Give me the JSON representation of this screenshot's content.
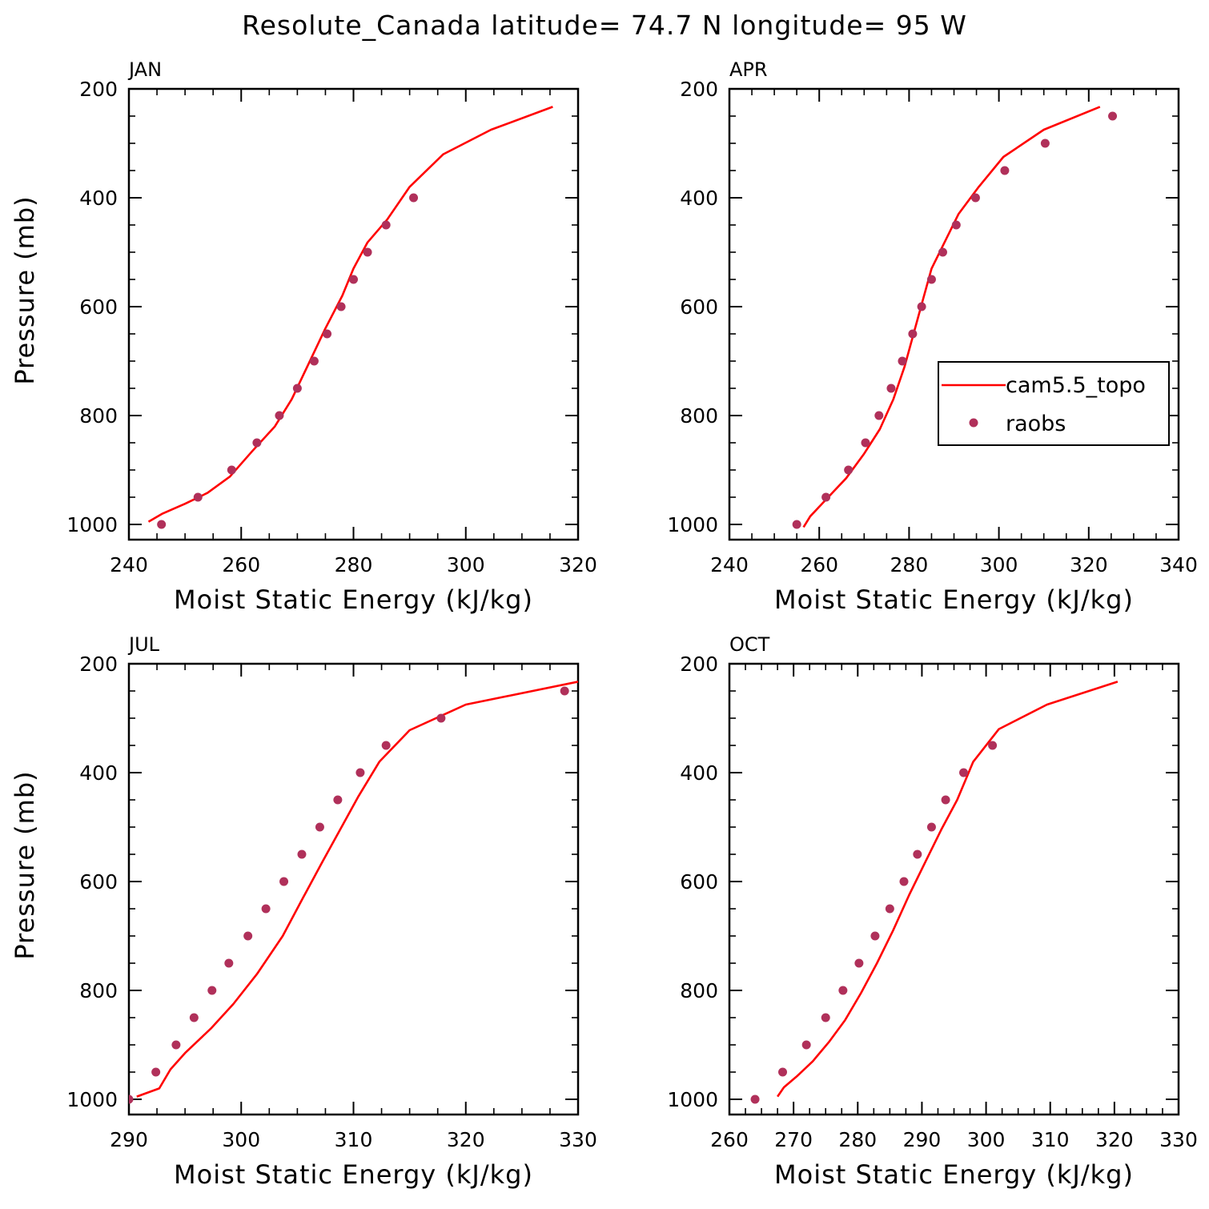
{
  "title": "Resolute_Canada  latitude= 74.7 N longitude= 95 W",
  "colors": {
    "model_line": "#ff0000",
    "obs_marker": "#b0305a"
  },
  "legend": {
    "model_label": "cam5.5_topo",
    "obs_label": "raobs"
  },
  "chart_data": [
    {
      "type": "line",
      "panel_label": "JAN",
      "xlabel": "Moist Static Energy (kJ/kg)",
      "ylabel": "Pressure (mb)",
      "xlim": [
        240,
        320
      ],
      "ylim": [
        200,
        1000
      ],
      "xticks": [
        240,
        260,
        280,
        300,
        320
      ],
      "yticks": [
        200,
        400,
        600,
        800,
        1000
      ],
      "series": [
        {
          "name": "cam5.5_topo",
          "kind": "line",
          "x": [
            243.5,
            246,
            250,
            254,
            258,
            262,
            266,
            269,
            272,
            275,
            278,
            280,
            282.5,
            286,
            290,
            296,
            304.5,
            315.5
          ],
          "p": [
            995,
            980,
            962,
            942,
            912,
            865,
            820,
            770,
            705,
            640,
            580,
            530,
            482,
            440,
            380,
            320,
            275,
            233
          ]
        },
        {
          "name": "raobs",
          "kind": "scatter",
          "x": [
            245.8,
            252.3,
            258.3,
            262.8,
            266.8,
            270,
            273,
            275.3,
            277.8,
            280,
            282.5,
            285.8,
            290.7
          ],
          "p": [
            1000,
            950,
            900,
            850,
            800,
            750,
            700,
            650,
            600,
            550,
            500,
            450,
            400
          ]
        }
      ]
    },
    {
      "type": "line",
      "panel_label": "APR",
      "xlabel": "Moist Static Energy (kJ/kg)",
      "ylabel": "",
      "xlim": [
        240,
        340
      ],
      "ylim": [
        200,
        1000
      ],
      "xticks": [
        240,
        260,
        280,
        300,
        320,
        340
      ],
      "yticks": [
        200,
        400,
        600,
        800,
        1000
      ],
      "legend_position": "middle-right",
      "series": [
        {
          "name": "cam5.5_topo",
          "kind": "line",
          "x": [
            256.5,
            258,
            262,
            266,
            270,
            273.5,
            276.5,
            279,
            281,
            283,
            285,
            288,
            291,
            295.5,
            301,
            310,
            322.5
          ],
          "p": [
            1005,
            985,
            950,
            915,
            870,
            825,
            770,
            710,
            650,
            590,
            530,
            480,
            430,
            380,
            325,
            275,
            233
          ]
        },
        {
          "name": "raobs",
          "kind": "scatter",
          "x": [
            255,
            261.5,
            266.5,
            270.3,
            273.3,
            276,
            278.5,
            280.8,
            282.8,
            285,
            287.5,
            290.5,
            294.8,
            301.3,
            310.3,
            325.3
          ],
          "p": [
            1000,
            950,
            900,
            850,
            800,
            750,
            700,
            650,
            600,
            550,
            500,
            450,
            400,
            350,
            300,
            250
          ]
        }
      ]
    },
    {
      "type": "line",
      "panel_label": "JUL",
      "xlabel": "Moist Static Energy (kJ/kg)",
      "ylabel": "Pressure (mb)",
      "xlim": [
        290,
        330
      ],
      "ylim": [
        200,
        1000
      ],
      "xticks": [
        290,
        300,
        310,
        320,
        330
      ],
      "yticks": [
        200,
        400,
        600,
        800,
        1000
      ],
      "series": [
        {
          "name": "cam5.5_topo",
          "kind": "line",
          "x": [
            290.7,
            292.7,
            293.7,
            295,
            297.3,
            299.3,
            301.4,
            303.7,
            305.5,
            307.2,
            308.8,
            310.4,
            312.3,
            315,
            320,
            330
          ],
          "p": [
            995,
            980,
            945,
            915,
            870,
            825,
            770,
            700,
            630,
            565,
            505,
            445,
            380,
            322,
            275,
            233
          ]
        },
        {
          "name": "raobs",
          "kind": "scatter",
          "x": [
            290,
            292.4,
            294.2,
            295.8,
            297.4,
            298.9,
            300.6,
            302.2,
            303.8,
            305.4,
            307,
            308.6,
            310.6,
            312.9,
            317.8,
            328.8
          ],
          "p": [
            1000,
            950,
            900,
            850,
            800,
            750,
            700,
            650,
            600,
            550,
            500,
            450,
            400,
            350,
            300,
            250
          ]
        }
      ]
    },
    {
      "type": "line",
      "panel_label": "OCT",
      "xlabel": "Moist Static Energy (kJ/kg)",
      "ylabel": "",
      "xlim": [
        260,
        330
      ],
      "ylim": [
        200,
        1000
      ],
      "xticks": [
        260,
        270,
        280,
        290,
        300,
        310,
        320,
        330
      ],
      "yticks": [
        200,
        400,
        600,
        800,
        1000
      ],
      "series": [
        {
          "name": "cam5.5_topo",
          "kind": "line",
          "x": [
            267.5,
            268.5,
            270.5,
            273,
            275.5,
            278,
            280.5,
            283,
            285.5,
            288,
            290.5,
            293,
            295.5,
            298,
            302,
            309.5,
            320.5
          ],
          "p": [
            995,
            978,
            958,
            930,
            895,
            855,
            805,
            750,
            690,
            625,
            565,
            505,
            450,
            380,
            320,
            275,
            233
          ]
        },
        {
          "name": "raobs",
          "kind": "scatter",
          "x": [
            264,
            268.3,
            272,
            275,
            277.7,
            280.2,
            282.7,
            285,
            287.2,
            289.3,
            291.5,
            293.7,
            296.5,
            301
          ],
          "p": [
            1000,
            950,
            900,
            850,
            800,
            750,
            700,
            650,
            600,
            550,
            500,
            450,
            400,
            350
          ]
        }
      ]
    }
  ]
}
